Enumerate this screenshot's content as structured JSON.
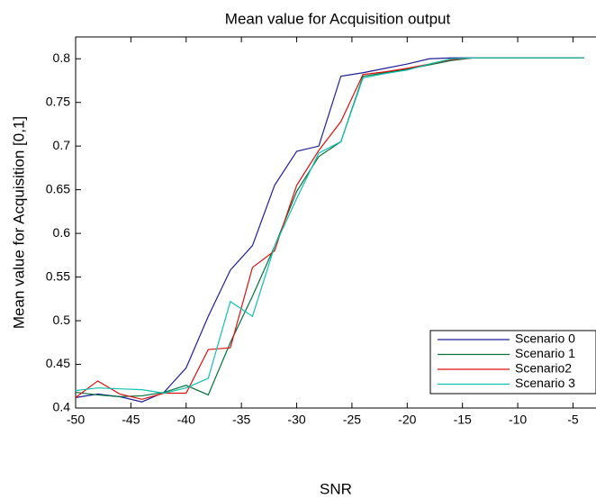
{
  "chart_data": {
    "type": "line",
    "title": "Mean value for Acquisition output",
    "x_label": "SNR",
    "y_label": "Mean value for Acquisition [0,1]",
    "x": [
      -50,
      -48,
      -46,
      -44,
      -42,
      -40,
      -38,
      -36,
      -34,
      -32,
      -30,
      -28,
      -26,
      -24,
      -22,
      -20,
      -18,
      -16,
      -14,
      -12,
      -10,
      -8,
      -6,
      -4
    ],
    "series": [
      {
        "name": "Scenario 0",
        "color": "#1f1f9a",
        "values": [
          0.412,
          0.416,
          0.413,
          0.407,
          0.418,
          0.446,
          0.505,
          0.558,
          0.586,
          0.655,
          0.694,
          0.7,
          0.78,
          0.784,
          0.789,
          0.794,
          0.8,
          0.801,
          0.801,
          0.801,
          0.801,
          0.801,
          0.801,
          0.801
        ]
      },
      {
        "name": "Scenario 1",
        "color": "#00703c",
        "values": [
          0.418,
          0.415,
          0.413,
          0.414,
          0.418,
          0.426,
          0.415,
          0.475,
          0.528,
          0.585,
          0.648,
          0.688,
          0.705,
          0.78,
          0.784,
          0.788,
          0.793,
          0.798,
          0.801,
          0.801,
          0.801,
          0.801,
          0.801,
          0.801
        ]
      },
      {
        "name": "Scenario2",
        "color": "#e01010",
        "values": [
          0.412,
          0.431,
          0.416,
          0.41,
          0.417,
          0.417,
          0.467,
          0.469,
          0.561,
          0.58,
          0.655,
          0.695,
          0.728,
          0.782,
          0.785,
          0.789,
          0.794,
          0.799,
          0.801,
          0.801,
          0.801,
          0.801,
          0.801,
          0.801
        ]
      },
      {
        "name": "Scenario 3",
        "color": "#10c0b0",
        "values": [
          0.42,
          0.423,
          0.422,
          0.421,
          0.417,
          0.423,
          0.434,
          0.522,
          0.505,
          0.585,
          0.64,
          0.692,
          0.705,
          0.778,
          0.783,
          0.787,
          0.794,
          0.8,
          0.801,
          0.801,
          0.801,
          0.801,
          0.801,
          0.801
        ]
      }
    ],
    "xlim": [
      -50,
      -3
    ],
    "xticks": [
      -50,
      -45,
      -40,
      -35,
      -30,
      -25,
      -20,
      -15,
      -10,
      -5
    ],
    "ylim": [
      0.4,
      0.825
    ],
    "yticks": [
      0.4,
      0.45,
      0.5,
      0.55,
      0.6,
      0.65,
      0.7,
      0.75,
      0.8
    ],
    "grid": false,
    "legend": "lower right"
  }
}
